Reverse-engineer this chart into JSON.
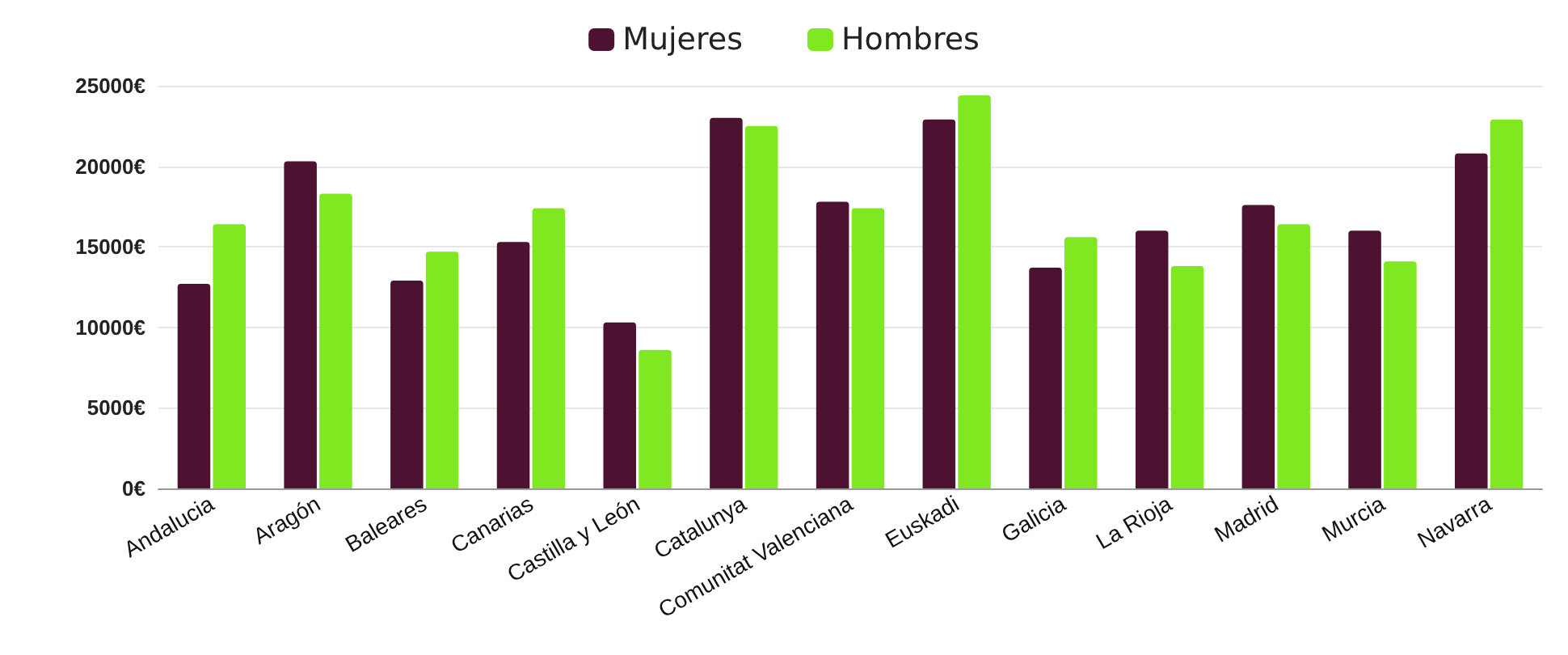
{
  "chart_data": {
    "type": "bar",
    "categories": [
      "Andalucia",
      "Aragón",
      "Baleares",
      "Canarias",
      "Castilla y León",
      "Catalunya",
      "Comunitat Valenciana",
      "Euskadi",
      "Galicia",
      "La Rioja",
      "Madrid",
      "Murcia",
      "Navarra"
    ],
    "series": [
      {
        "name": "Mujeres",
        "color": "#4d1232",
        "values": [
          12700,
          20300,
          12900,
          15300,
          10300,
          23000,
          17800,
          22900,
          13700,
          16000,
          17600,
          16000,
          20800
        ]
      },
      {
        "name": "Hombres",
        "color": "#7fe820",
        "values": [
          16400,
          18300,
          14700,
          17400,
          8600,
          22500,
          17400,
          24400,
          15600,
          13800,
          16400,
          14100,
          22900
        ]
      }
    ],
    "ylim": [
      0,
      25000
    ],
    "yticks": [
      {
        "value": 0,
        "label": "0€"
      },
      {
        "value": 5000,
        "label": "5000€"
      },
      {
        "value": 10000,
        "label": "10000€"
      },
      {
        "value": 15000,
        "label": "15000€"
      },
      {
        "value": 20000,
        "label": "20000€"
      },
      {
        "value": 25000,
        "label": "25000€"
      }
    ],
    "grid": "y",
    "legend": "top"
  }
}
